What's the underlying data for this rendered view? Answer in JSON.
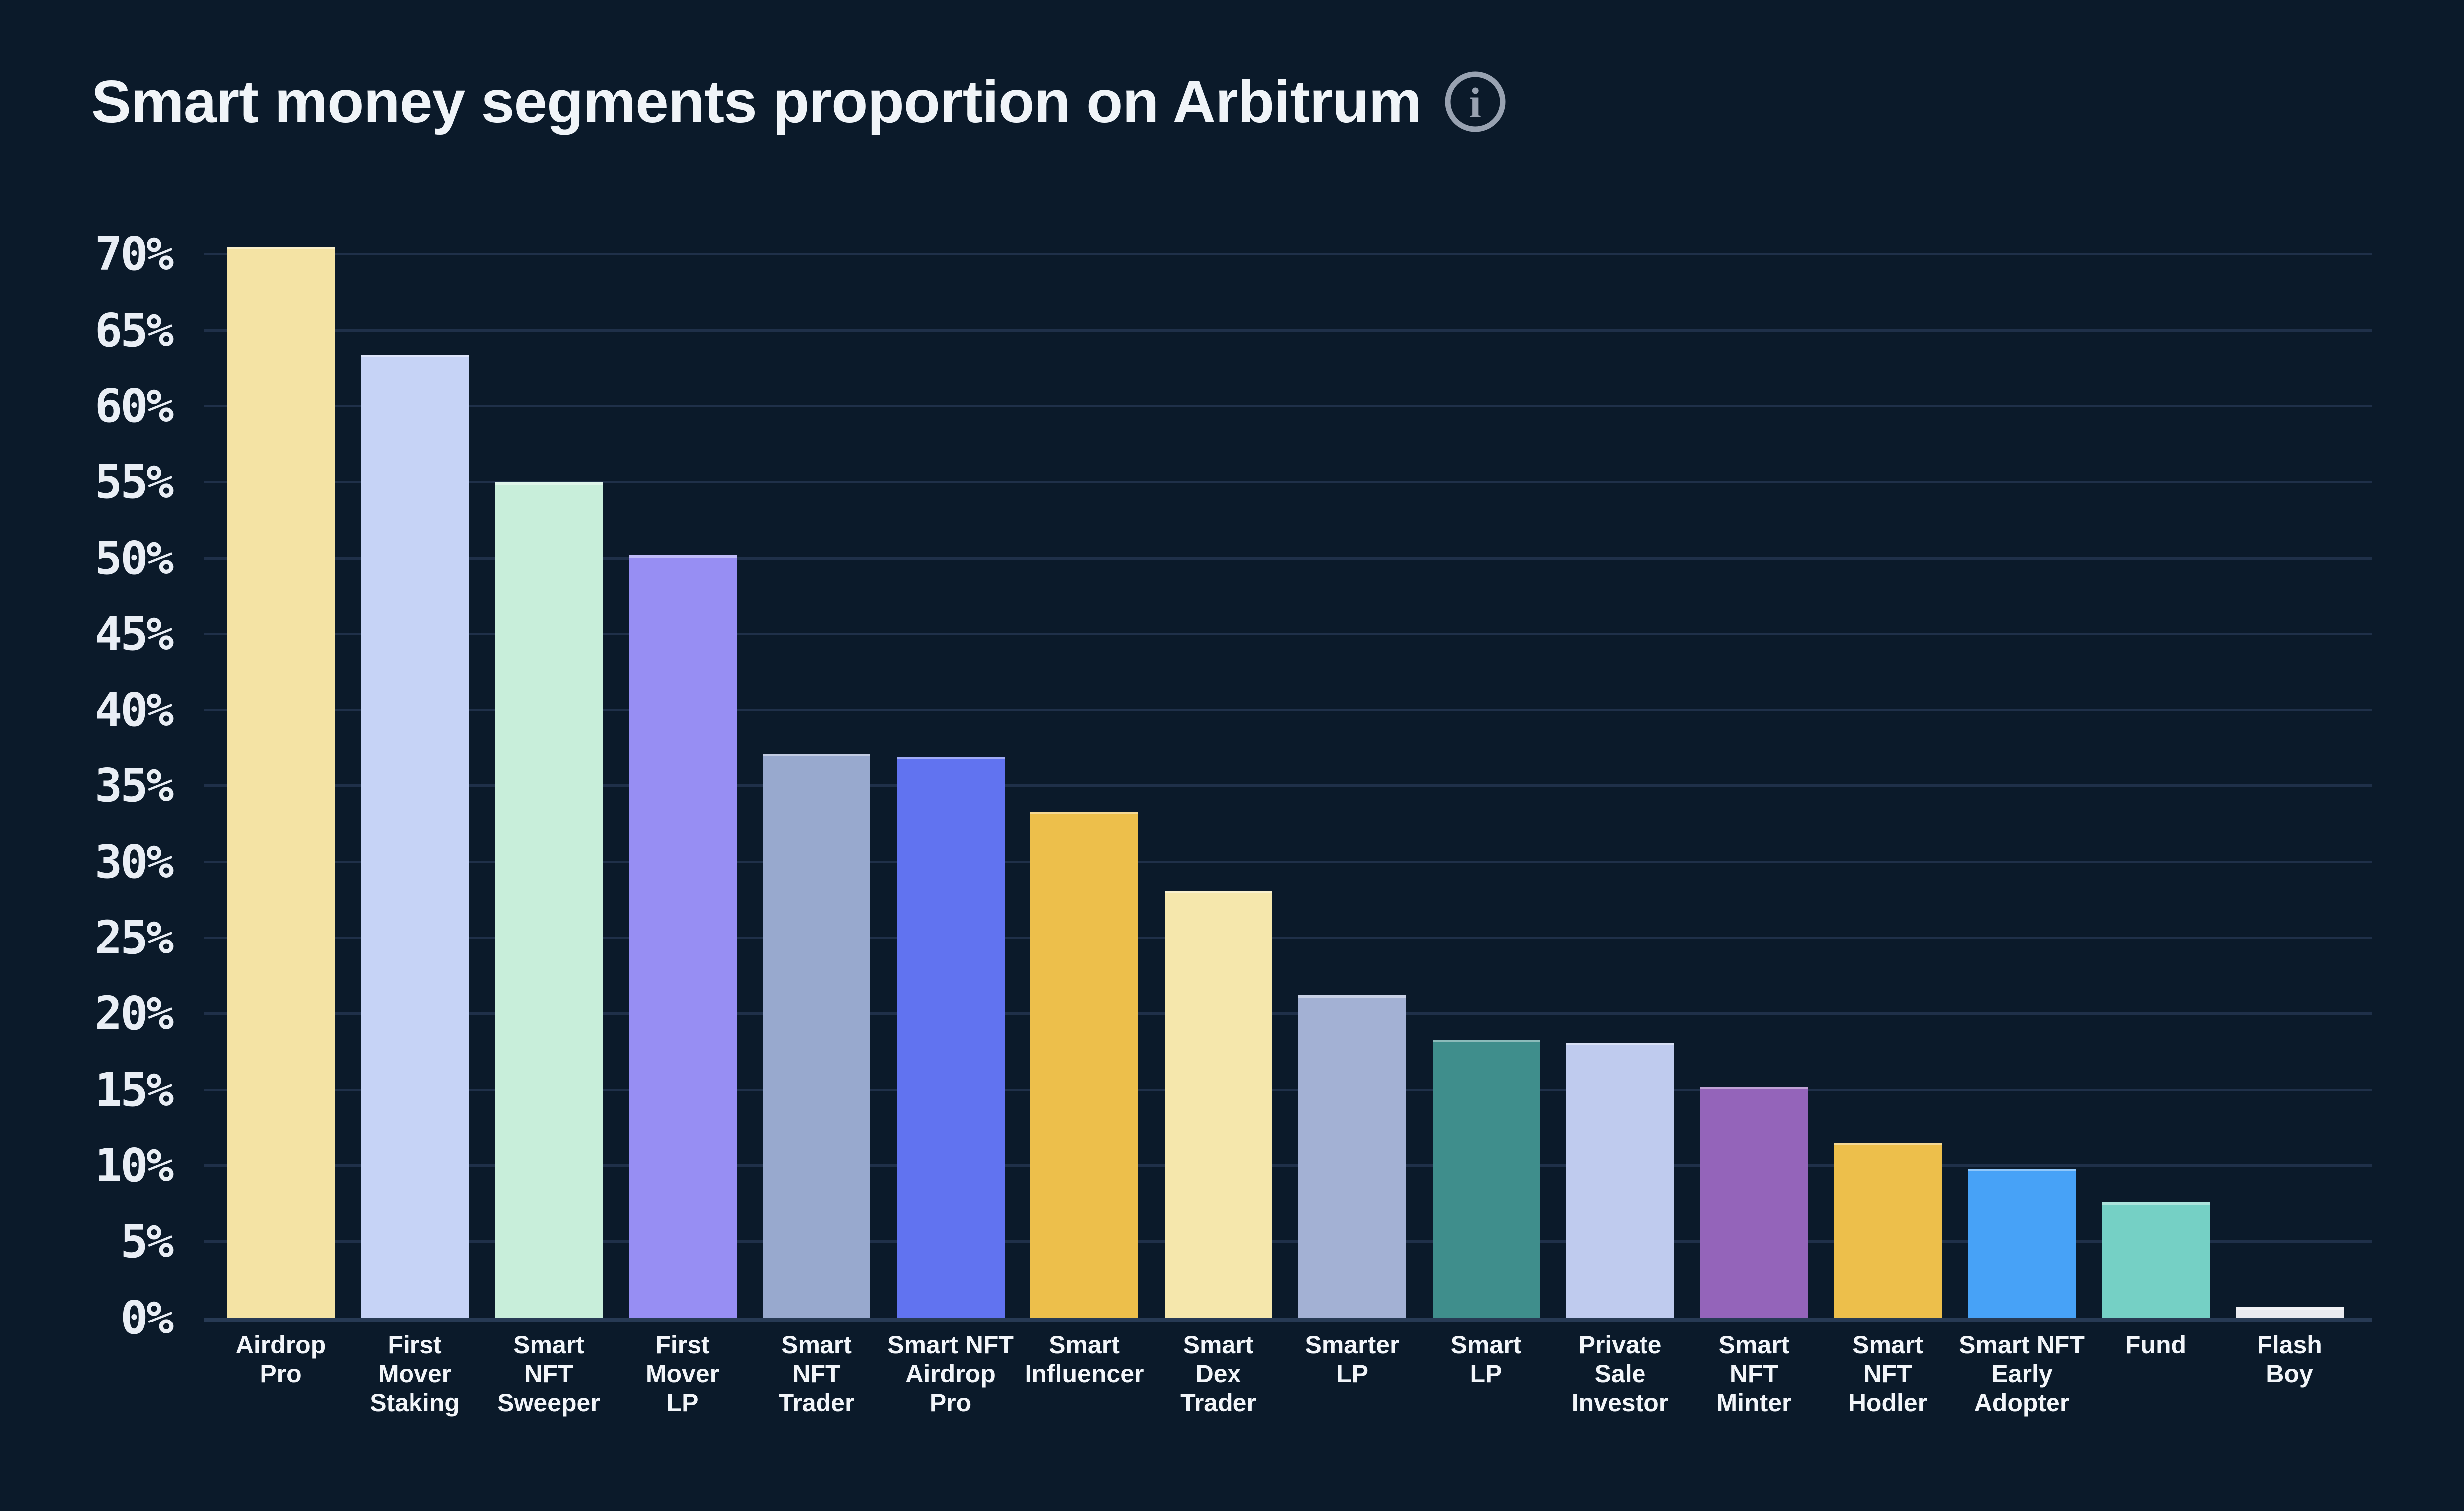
{
  "header": {
    "title": "Smart money segments proportion on Arbitrum",
    "info_icon": "info-circle-icon"
  },
  "colors": {
    "background": "#0b1a2a",
    "title_text": "#f0f4f8",
    "axis_tick_text": "#e9eef5",
    "x_label_text": "#f2f5f9",
    "gridline": "#1f3049",
    "axis_line": "#273a54",
    "info_icon": "#98a2b1"
  },
  "chart_data": {
    "type": "bar",
    "title": "Smart money segments proportion on Arbitrum",
    "xlabel": "",
    "ylabel": "",
    "ylim": [
      0,
      72
    ],
    "grid": true,
    "legend": "none",
    "y_ticks": [
      "0%",
      "5%",
      "10%",
      "15%",
      "20%",
      "25%",
      "30%",
      "35%",
      "40%",
      "45%",
      "50%",
      "55%",
      "60%",
      "65%",
      "70%"
    ],
    "categories": [
      "Airdrop Pro",
      "First Mover Staking",
      "Smart NFT Sweeper",
      "First Mover LP",
      "Smart NFT Trader",
      "Smart NFT Airdrop Pro",
      "Smart Influencer",
      "Smart Dex Trader",
      "Smarter LP",
      "Smart LP",
      "Private Sale Investor",
      "Smart NFT Minter",
      "Smart NFT Hodler",
      "Smart NFT Early Adopter",
      "Fund",
      "Flash Boy"
    ],
    "label_lines": [
      [
        "Airdrop",
        "Pro"
      ],
      [
        "First",
        "Mover",
        "Staking"
      ],
      [
        "Smart",
        "NFT",
        "Sweeper"
      ],
      [
        "First",
        "Mover",
        "LP"
      ],
      [
        "Smart",
        "NFT",
        "Trader"
      ],
      [
        "Smart NFT",
        "Airdrop",
        "Pro"
      ],
      [
        "Smart",
        "Influencer"
      ],
      [
        "Smart",
        "Dex",
        "Trader"
      ],
      [
        "Smarter",
        "LP"
      ],
      [
        "Smart",
        "LP"
      ],
      [
        "Private",
        "Sale",
        "Investor"
      ],
      [
        "Smart",
        "NFT",
        "Minter"
      ],
      [
        "Smart",
        "NFT",
        "Hodler"
      ],
      [
        "Smart NFT",
        "Early",
        "Adopter"
      ],
      [
        "Fund"
      ],
      [
        "Flash",
        "Boy"
      ]
    ],
    "values": [
      70.5,
      63.4,
      55.0,
      50.2,
      37.1,
      36.9,
      33.3,
      28.1,
      21.2,
      18.3,
      18.1,
      15.2,
      11.5,
      9.8,
      7.6,
      0.7
    ],
    "bar_colors": [
      "#f4e3a4",
      "#c6d3f6",
      "#c8eeda",
      "#978ef3",
      "#98a9ce",
      "#6173f0",
      "#edbf4b",
      "#f5e7ac",
      "#a3b1d4",
      "#3f8e8c",
      "#bfcbee",
      "#9464ba",
      "#edbf4b",
      "#47a2f7",
      "#75d0c5",
      "#e8e9ee"
    ]
  }
}
